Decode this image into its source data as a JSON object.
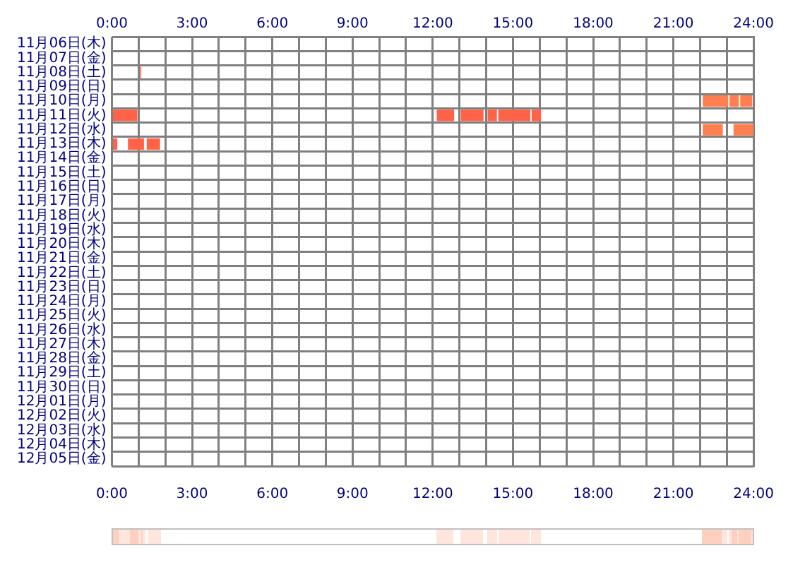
{
  "chart_data": {
    "type": "bar",
    "orientation": "horizontal",
    "categories": [
      "11月06日(木)",
      "11月07日(金)",
      "11月08日(土)",
      "11月09日(日)",
      "11月10日(月)",
      "11月11日(火)",
      "11月12日(水)",
      "11月13日(木)",
      "11月14日(金)",
      "11月15日(土)",
      "11月16日(日)",
      "11月17日(月)",
      "11月18日(火)",
      "11月19日(水)",
      "11月20日(木)",
      "11月21日(金)",
      "11月22日(土)",
      "11月23日(日)",
      "11月24日(月)",
      "11月25日(火)",
      "11月26日(水)",
      "11月27日(木)",
      "11月28日(金)",
      "11月29日(土)",
      "11月30日(日)",
      "12月01日(月)",
      "12月02日(火)",
      "12月03日(水)",
      "12月04日(木)",
      "12月05日(金)"
    ],
    "series": [
      {
        "base": [
          null,
          null,
          1.05,
          null,
          22.1,
          0,
          22.1,
          0,
          null,
          null,
          null,
          null,
          null,
          null,
          null,
          null,
          null,
          null,
          null,
          null,
          null,
          null,
          null,
          null,
          null,
          null,
          null,
          null,
          null,
          null
        ],
        "values": [
          null,
          null,
          0.05,
          null,
          0.95,
          0.95,
          0.75,
          0.2,
          null,
          null,
          null,
          null,
          null,
          null,
          null,
          null,
          null,
          null,
          null,
          null,
          null,
          null,
          null,
          null,
          null,
          null,
          null,
          null,
          null,
          null
        ],
        "colors": [
          null,
          null,
          "#ff7f50",
          null,
          "#ff7f50",
          "#ff6347",
          "#ff7f50",
          "#ff6347",
          null,
          null,
          null,
          null,
          null,
          null,
          null,
          null,
          null,
          null,
          null,
          null,
          null,
          null,
          null,
          null,
          null,
          null,
          null,
          null,
          null,
          null
        ]
      },
      {
        "base": [
          null,
          null,
          null,
          null,
          23.1,
          12.15,
          23.25,
          0.6,
          null,
          null,
          null,
          null,
          null,
          null,
          null,
          null,
          null,
          null,
          null,
          null,
          null,
          null,
          null,
          null,
          null,
          null,
          null,
          null,
          null,
          null
        ],
        "values": [
          null,
          null,
          null,
          null,
          0.35,
          0.65,
          0.75,
          0.6,
          null,
          null,
          null,
          null,
          null,
          null,
          null,
          null,
          null,
          null,
          null,
          null,
          null,
          null,
          null,
          null,
          null,
          null,
          null,
          null,
          null,
          null
        ],
        "colors": [
          null,
          null,
          null,
          null,
          "#ff7f50",
          "#ff6347",
          "#ff7f50",
          "#ff6347",
          null,
          null,
          null,
          null,
          null,
          null,
          null,
          null,
          null,
          null,
          null,
          null,
          null,
          null,
          null,
          null,
          null,
          null,
          null,
          null,
          null,
          null
        ]
      },
      {
        "base": [
          null,
          null,
          null,
          null,
          23.5,
          13.05,
          null,
          1.3,
          null,
          null,
          null,
          null,
          null,
          null,
          null,
          null,
          null,
          null,
          null,
          null,
          null,
          null,
          null,
          null,
          null,
          null,
          null,
          null,
          null,
          null
        ],
        "values": [
          null,
          null,
          null,
          null,
          0.45,
          0.85,
          null,
          0.5,
          null,
          null,
          null,
          null,
          null,
          null,
          null,
          null,
          null,
          null,
          null,
          null,
          null,
          null,
          null,
          null,
          null,
          null,
          null,
          null,
          null,
          null
        ],
        "colors": [
          null,
          null,
          null,
          null,
          "#ff7f50",
          "#ff6347",
          null,
          "#ff6347",
          null,
          null,
          null,
          null,
          null,
          null,
          null,
          null,
          null,
          null,
          null,
          null,
          null,
          null,
          null,
          null,
          null,
          null,
          null,
          null,
          null,
          null
        ]
      },
      {
        "base": [
          null,
          null,
          null,
          null,
          null,
          14.05,
          null,
          null,
          null,
          null,
          null,
          null,
          null,
          null,
          null,
          null,
          null,
          null,
          null,
          null,
          null,
          null,
          null,
          null,
          null,
          null,
          null,
          null,
          null,
          null
        ],
        "values": [
          null,
          null,
          null,
          null,
          null,
          0.35,
          null,
          null,
          null,
          null,
          null,
          null,
          null,
          null,
          null,
          null,
          null,
          null,
          null,
          null,
          null,
          null,
          null,
          null,
          null,
          null,
          null,
          null,
          null,
          null
        ],
        "colors": [
          null,
          null,
          null,
          null,
          null,
          "#ff6347",
          null,
          null,
          null,
          null,
          null,
          null,
          null,
          null,
          null,
          null,
          null,
          null,
          null,
          null,
          null,
          null,
          null,
          null,
          null,
          null,
          null,
          null,
          null,
          null
        ]
      },
      {
        "base": [
          null,
          null,
          null,
          null,
          null,
          14.45,
          null,
          null,
          null,
          null,
          null,
          null,
          null,
          null,
          null,
          null,
          null,
          null,
          null,
          null,
          null,
          null,
          null,
          null,
          null,
          null,
          null,
          null,
          null,
          null
        ],
        "values": [
          null,
          null,
          null,
          null,
          null,
          1.2,
          null,
          null,
          null,
          null,
          null,
          null,
          null,
          null,
          null,
          null,
          null,
          null,
          null,
          null,
          null,
          null,
          null,
          null,
          null,
          null,
          null,
          null,
          null,
          null
        ],
        "colors": [
          null,
          null,
          null,
          null,
          null,
          "#ff6347",
          null,
          null,
          null,
          null,
          null,
          null,
          null,
          null,
          null,
          null,
          null,
          null,
          null,
          null,
          null,
          null,
          null,
          null,
          null,
          null,
          null,
          null,
          null,
          null
        ]
      },
      {
        "base": [
          null,
          null,
          null,
          null,
          null,
          15.7,
          null,
          null,
          null,
          null,
          null,
          null,
          null,
          null,
          null,
          null,
          null,
          null,
          null,
          null,
          null,
          null,
          null,
          null,
          null,
          null,
          null,
          null,
          null,
          null
        ],
        "values": [
          null,
          null,
          null,
          null,
          null,
          0.35,
          null,
          null,
          null,
          null,
          null,
          null,
          null,
          null,
          null,
          null,
          null,
          null,
          null,
          null,
          null,
          null,
          null,
          null,
          null,
          null,
          null,
          null,
          null,
          null
        ],
        "colors": [
          null,
          null,
          null,
          null,
          null,
          "#ff6347",
          null,
          null,
          null,
          null,
          null,
          null,
          null,
          null,
          null,
          null,
          null,
          null,
          null,
          null,
          null,
          null,
          null,
          null,
          null,
          null,
          null,
          null,
          null,
          null
        ]
      }
    ],
    "xlim": [
      0,
      24
    ],
    "xticks": [
      {
        "value": 0,
        "label": "0:00"
      },
      {
        "value": 1,
        "label": null
      },
      {
        "value": 2,
        "label": null
      },
      {
        "value": 3,
        "label": "3:00"
      },
      {
        "value": 4,
        "label": null
      },
      {
        "value": 5,
        "label": null
      },
      {
        "value": 6,
        "label": "6:00"
      },
      {
        "value": 7,
        "label": null
      },
      {
        "value": 8,
        "label": null
      },
      {
        "value": 9,
        "label": "9:00"
      },
      {
        "value": 10,
        "label": null
      },
      {
        "value": 11,
        "label": null
      },
      {
        "value": 12,
        "label": "12:00"
      },
      {
        "value": 13,
        "label": null
      },
      {
        "value": 14,
        "label": null
      },
      {
        "value": 15,
        "label": "15:00"
      },
      {
        "value": 16,
        "label": null
      },
      {
        "value": 17,
        "label": null
      },
      {
        "value": 18,
        "label": "18:00"
      },
      {
        "value": 19,
        "label": null
      },
      {
        "value": 20,
        "label": null
      },
      {
        "value": 21,
        "label": "21:00"
      },
      {
        "value": 22,
        "label": null
      },
      {
        "value": 23,
        "label": null
      },
      {
        "value": 24,
        "label": "24:00"
      }
    ],
    "x2lim": [
      0,
      24
    ],
    "x2ticks": [
      {
        "value": 0,
        "label": "0:00"
      },
      {
        "value": 3,
        "label": "3:00"
      },
      {
        "value": 6,
        "label": "6:00"
      },
      {
        "value": 9,
        "label": "9:00"
      },
      {
        "value": 12,
        "label": "12:00"
      },
      {
        "value": 15,
        "label": "15:00"
      },
      {
        "value": 18,
        "label": "18:00"
      },
      {
        "value": 21,
        "label": "21:00"
      },
      {
        "value": 24,
        "label": "24:00"
      }
    ],
    "grid": true
  }
}
